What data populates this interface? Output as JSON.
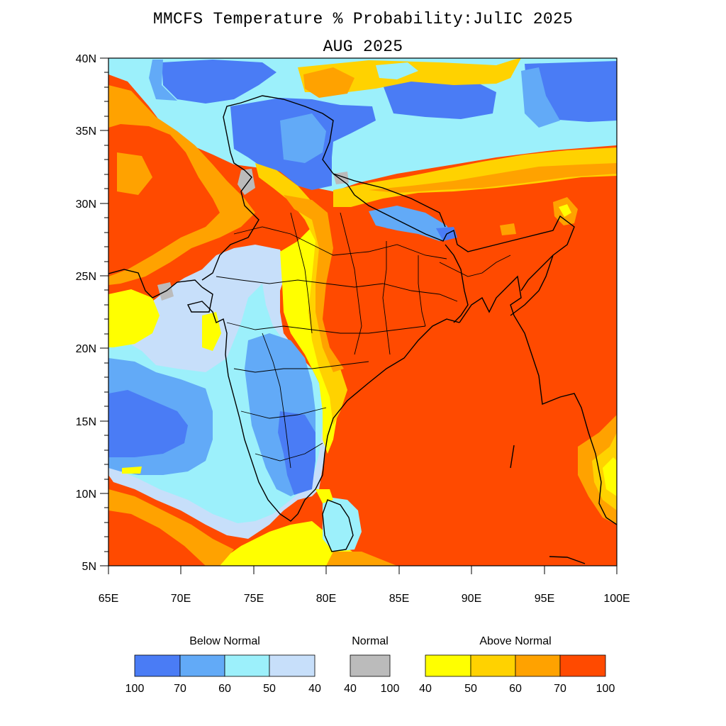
{
  "title": "MMCFS Temperature % Probability:JulIC 2025",
  "subtitle": "AUG 2025",
  "axes": {
    "lat_ticks": [
      "40N",
      "35N",
      "30N",
      "25N",
      "20N",
      "15N",
      "10N",
      "5N"
    ],
    "lon_ticks": [
      "65E",
      "70E",
      "75E",
      "80E",
      "85E",
      "90E",
      "95E",
      "100E"
    ],
    "lat_range": [
      5,
      40
    ],
    "lon_range": [
      65,
      100
    ]
  },
  "colors": {
    "below_100_70": "#4a7cf5",
    "below_70_60": "#62aaf7",
    "below_60_50": "#9cf0fb",
    "below_50_40": "#c7dffa",
    "normal": "#bbbbbb",
    "above_40_50": "#ffff00",
    "above_50_60": "#ffd200",
    "above_60_70": "#ffa200",
    "above_70_100": "#ff4a00"
  },
  "legend": {
    "below": {
      "title": "Below Normal",
      "labels": [
        "100",
        "70",
        "60",
        "50",
        "40"
      ],
      "colors": [
        "#4a7cf5",
        "#62aaf7",
        "#9cf0fb",
        "#c7dffa"
      ]
    },
    "normal": {
      "title": "Normal",
      "labels": [
        "40",
        "100"
      ],
      "colors": [
        "#bbbbbb"
      ]
    },
    "above": {
      "title": "Above Normal",
      "labels": [
        "40",
        "50",
        "60",
        "70",
        "100"
      ],
      "colors": [
        "#ffff00",
        "#ffd200",
        "#ffa200",
        "#ff4a00"
      ]
    }
  }
}
